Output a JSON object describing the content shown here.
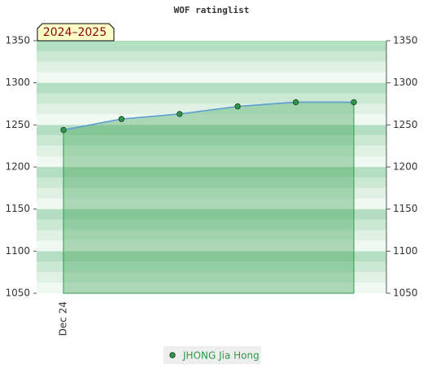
{
  "chart_data": {
    "type": "area-line",
    "title": "WOF ratinglist",
    "annotation": "2024–2025",
    "categories": [
      "Dec 24",
      null,
      null,
      null,
      null,
      null
    ],
    "series": [
      {
        "name": "JHONG Jia Hong",
        "color": "#2e9a48",
        "line_color": "#5a9bd5",
        "values": [
          1244,
          1257,
          1263,
          1272,
          1277,
          1277
        ]
      }
    ],
    "ylim": [
      1050,
      1350
    ],
    "yticks": [
      1050,
      1100,
      1150,
      1200,
      1250,
      1300,
      1350
    ],
    "y2lim": [
      1050,
      1350
    ],
    "y2ticks": [
      1050,
      1100,
      1150,
      1200,
      1250,
      1300,
      1350
    ],
    "grid": true
  }
}
